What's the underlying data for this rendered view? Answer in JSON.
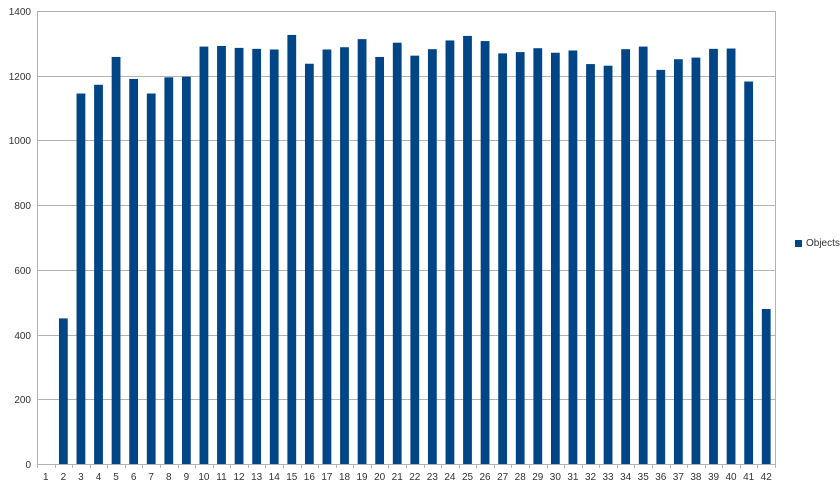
{
  "chart_data": {
    "type": "bar",
    "categories": [
      "1",
      "2",
      "3",
      "4",
      "5",
      "6",
      "7",
      "8",
      "9",
      "10",
      "11",
      "12",
      "13",
      "14",
      "15",
      "16",
      "17",
      "18",
      "19",
      "20",
      "21",
      "22",
      "23",
      "24",
      "25",
      "26",
      "27",
      "28",
      "29",
      "30",
      "31",
      "32",
      "33",
      "34",
      "35",
      "36",
      "37",
      "38",
      "39",
      "40",
      "41",
      "42"
    ],
    "series": [
      {
        "name": "Objects",
        "color": "#004586",
        "values": [
          0,
          450,
          1145,
          1172,
          1258,
          1190,
          1145,
          1195,
          1197,
          1290,
          1292,
          1286,
          1283,
          1281,
          1326,
          1237,
          1281,
          1288,
          1313,
          1258,
          1302,
          1262,
          1282,
          1309,
          1323,
          1307,
          1269,
          1273,
          1285,
          1271,
          1278,
          1236,
          1231,
          1282,
          1290,
          1218,
          1251,
          1256,
          1283,
          1284,
          1182,
          479
        ]
      }
    ],
    "ylim": [
      0,
      1400
    ],
    "yticks": [
      0,
      200,
      400,
      600,
      800,
      1000,
      1200,
      1400
    ],
    "grid": "horizontal",
    "legend": "right"
  }
}
